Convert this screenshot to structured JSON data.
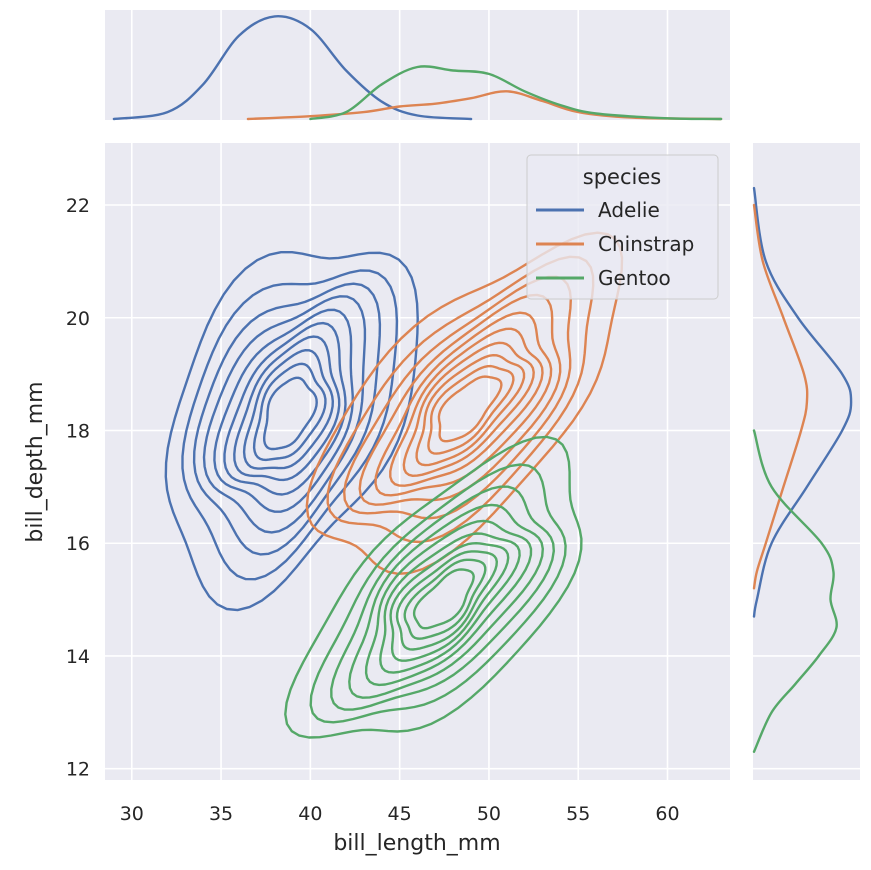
{
  "colors": {
    "Adelie": "#4c72b0",
    "Chinstrap": "#dd8452",
    "Gentoo": "#55a868",
    "panel": "#eaeaf2",
    "grid": "#ffffff"
  },
  "chart_data": {
    "type": "kde-jointplot",
    "title": "",
    "xlabel": "bill_length_mm",
    "ylabel": "bill_depth_mm",
    "xlim": [
      28.5,
      63.5
    ],
    "ylim": [
      11.8,
      23.1
    ],
    "xticks": [
      30,
      35,
      40,
      45,
      50,
      55,
      60
    ],
    "yticks": [
      12,
      14,
      16,
      18,
      20,
      22
    ],
    "grid": true,
    "legend": {
      "title": "species",
      "placement": "top-right",
      "entries": [
        "Adelie",
        "Chinstrap",
        "Gentoo"
      ]
    },
    "series": [
      {
        "name": "Adelie",
        "center_x": 38.8,
        "center_y": 18.3,
        "sd_x": 2.7,
        "sd_y": 1.2,
        "correlation": 0.39
      },
      {
        "name": "Chinstrap",
        "center_x": 48.8,
        "center_y": 18.4,
        "sd_x": 3.3,
        "sd_y": 1.1,
        "correlation": 0.65
      },
      {
        "name": "Gentoo",
        "center_x": 47.5,
        "center_y": 15.0,
        "sd_x": 3.1,
        "sd_y": 1.0,
        "correlation": 0.64
      }
    ],
    "marginal_x": [
      {
        "name": "Adelie",
        "x": [
          29,
          32,
          34,
          36,
          38,
          40,
          42,
          44,
          46,
          49
        ],
        "density": [
          0.0,
          0.01,
          0.05,
          0.12,
          0.148,
          0.13,
          0.07,
          0.025,
          0.005,
          0.0
        ]
      },
      {
        "name": "Chinstrap",
        "x": [
          36.5,
          40,
          43,
          45,
          47,
          49,
          51,
          53,
          55,
          58,
          63
        ],
        "density": [
          0.0,
          0.004,
          0.01,
          0.018,
          0.022,
          0.03,
          0.04,
          0.026,
          0.01,
          0.002,
          0.0
        ]
      },
      {
        "name": "Gentoo",
        "x": [
          40,
          42,
          44,
          46,
          48,
          50,
          52,
          54,
          56,
          60,
          63
        ],
        "density": [
          0.0,
          0.01,
          0.05,
          0.075,
          0.07,
          0.065,
          0.04,
          0.02,
          0.008,
          0.001,
          0.0
        ]
      }
    ],
    "marginal_y": [
      {
        "name": "Adelie",
        "y": [
          22.3,
          21,
          20,
          19,
          18.5,
          18,
          17,
          16,
          15,
          14.7
        ],
        "density": [
          0.0,
          0.04,
          0.15,
          0.3,
          0.33,
          0.3,
          0.18,
          0.06,
          0.01,
          0.0
        ]
      },
      {
        "name": "Chinstrap",
        "y": [
          22.0,
          21,
          20,
          19,
          18.5,
          18,
          17,
          16,
          15.5,
          15.2
        ],
        "density": [
          0.0,
          0.03,
          0.1,
          0.17,
          0.18,
          0.16,
          0.1,
          0.04,
          0.01,
          0.0
        ]
      },
      {
        "name": "Gentoo",
        "y": [
          18.0,
          17,
          16,
          15.5,
          15,
          14.5,
          14,
          13.5,
          13,
          12.3
        ],
        "density": [
          0.0,
          0.06,
          0.23,
          0.27,
          0.26,
          0.28,
          0.22,
          0.14,
          0.06,
          0.0
        ]
      }
    ]
  }
}
